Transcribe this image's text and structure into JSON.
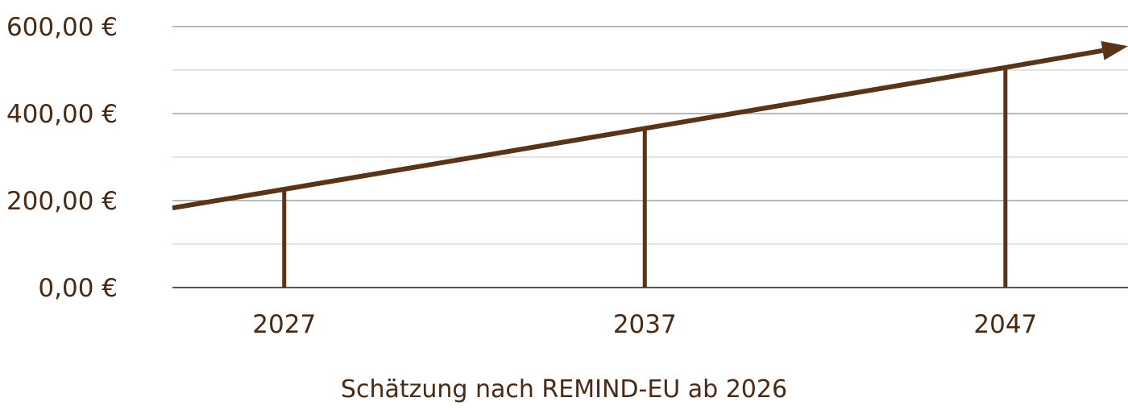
{
  "chart_data": {
    "type": "line",
    "x_range": [
      2023.9,
      2050.4
    ],
    "ylim": [
      0,
      600
    ],
    "yticks": [
      {
        "value": 0,
        "label": "0,00 €"
      },
      {
        "value": 200,
        "label": "200,00 €"
      },
      {
        "value": 400,
        "label": "400,00 €"
      },
      {
        "value": 600,
        "label": "600,00 €"
      }
    ],
    "minor_gridlines": [
      100,
      300,
      500
    ],
    "xticks": [
      {
        "value": 2027,
        "label": "2027"
      },
      {
        "value": 2037,
        "label": "2037"
      },
      {
        "value": 2047,
        "label": "2047"
      }
    ],
    "xlabel": "Schätzung nach REMIND-EU ab 2026",
    "grid": true,
    "series": [
      {
        "points": [
          {
            "x": 2023.9,
            "y": 183
          },
          {
            "x": 2027,
            "y": 226
          },
          {
            "x": 2037,
            "y": 366
          },
          {
            "x": 2047,
            "y": 506
          },
          {
            "x": 2050.4,
            "y": 555
          }
        ],
        "end_arrow": true,
        "drop_lines_at": [
          2027,
          2037,
          2047
        ]
      }
    ],
    "colors": {
      "line": "#5a3418",
      "text": "#4a2a14",
      "grid_major": "#a0a0a0",
      "grid_minor": "#dcdcdc",
      "baseline": "#555555"
    }
  }
}
